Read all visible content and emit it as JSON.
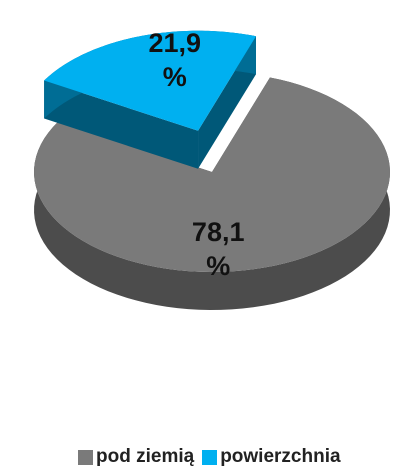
{
  "chart_data": {
    "type": "pie",
    "categories": [
      "pod ziemią",
      "powierzchnia"
    ],
    "values": [
      78.1,
      21.9
    ],
    "value_labels": [
      "78,1\n%",
      "21,9\n%"
    ],
    "colors": [
      "#7a7a7a",
      "#00b0f0"
    ],
    "legend": "bottom"
  }
}
